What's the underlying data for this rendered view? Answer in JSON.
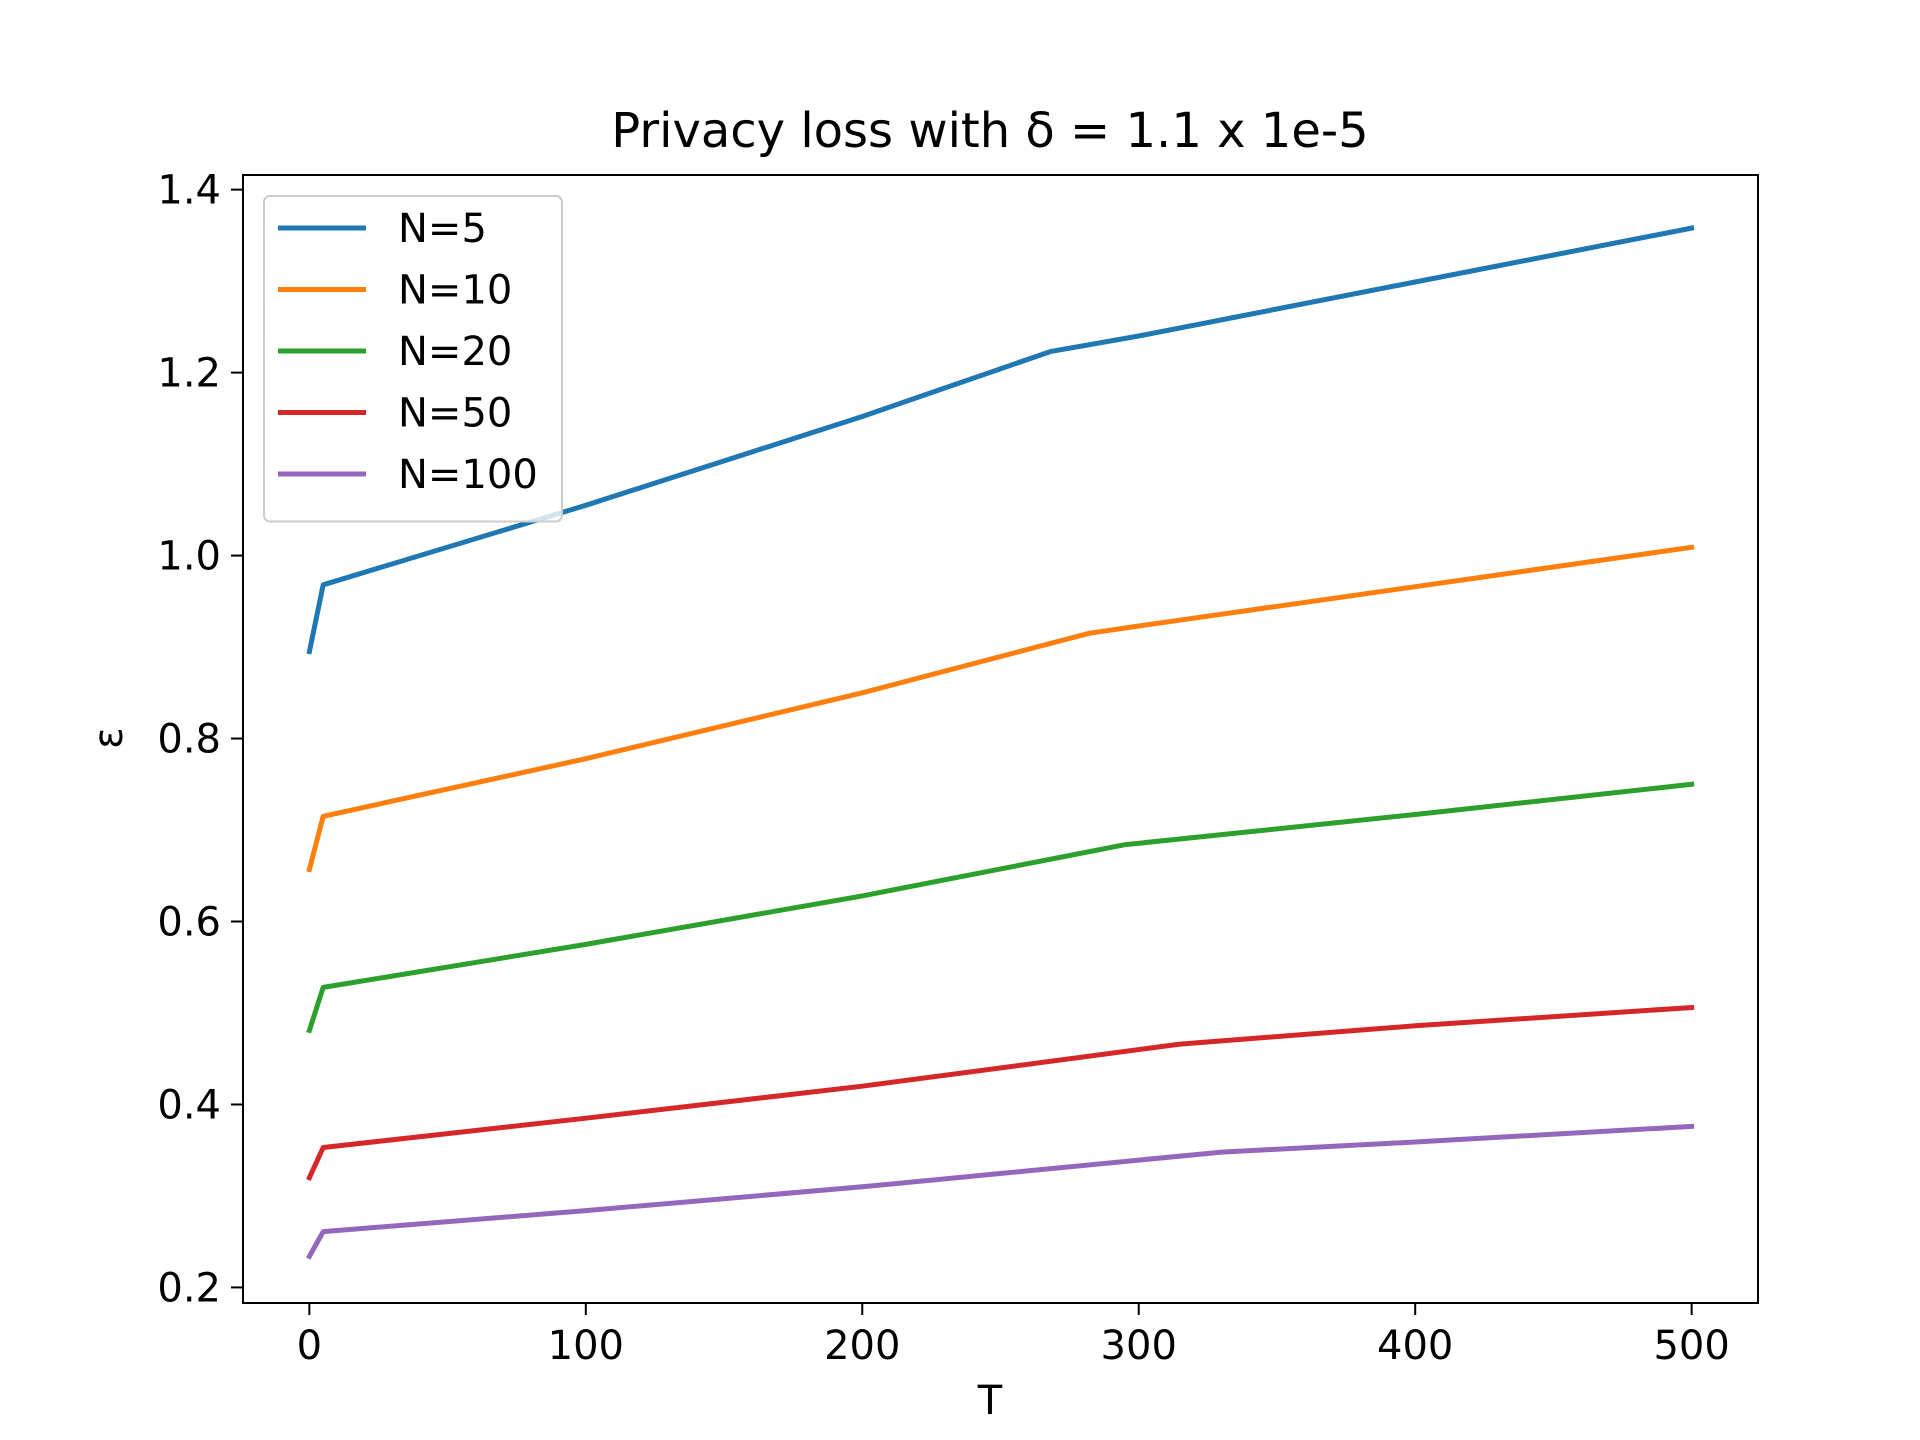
{
  "chart_data": {
    "type": "line",
    "title": "Privacy loss with δ = 1.1 x 1e-5",
    "xlabel": "T",
    "ylabel": "ε",
    "xlim": [
      -24,
      524
    ],
    "ylim": [
      0.183,
      1.416
    ],
    "xticks": [
      0,
      100,
      200,
      300,
      400,
      500
    ],
    "yticks": [
      0.2,
      0.4,
      0.6,
      0.8,
      1.0,
      1.2,
      1.4
    ],
    "ytick_labels": [
      "0.2",
      "0.4",
      "0.6",
      "0.8",
      "1.0",
      "1.2",
      "1.4"
    ],
    "grid": false,
    "legend": "upper-left",
    "series": [
      {
        "name": "N=5",
        "color": "#1f77b4",
        "points": [
          [
            0,
            0.895
          ],
          [
            5,
            0.968
          ],
          [
            100,
            1.055
          ],
          [
            200,
            1.152
          ],
          [
            268,
            1.223
          ],
          [
            300,
            1.24
          ],
          [
            400,
            1.299
          ],
          [
            500,
            1.358
          ]
        ]
      },
      {
        "name": "N=10",
        "color": "#ff7f0e",
        "points": [
          [
            0,
            0.657
          ],
          [
            5,
            0.715
          ],
          [
            100,
            0.778
          ],
          [
            200,
            0.85
          ],
          [
            282,
            0.915
          ],
          [
            300,
            0.923
          ],
          [
            400,
            0.966
          ],
          [
            500,
            1.009
          ]
        ]
      },
      {
        "name": "N=20",
        "color": "#2ca02c",
        "points": [
          [
            0,
            0.481
          ],
          [
            5,
            0.528
          ],
          [
            100,
            0.575
          ],
          [
            200,
            0.628
          ],
          [
            295,
            0.684
          ],
          [
            400,
            0.717
          ],
          [
            500,
            0.75
          ]
        ]
      },
      {
        "name": "N=50",
        "color": "#d62728",
        "points": [
          [
            0,
            0.32
          ],
          [
            5,
            0.353
          ],
          [
            100,
            0.385
          ],
          [
            200,
            0.42
          ],
          [
            315,
            0.466
          ],
          [
            400,
            0.486
          ],
          [
            500,
            0.506
          ]
        ]
      },
      {
        "name": "N=100",
        "color": "#9467bd",
        "points": [
          [
            0,
            0.234
          ],
          [
            5,
            0.261
          ],
          [
            100,
            0.284
          ],
          [
            200,
            0.31
          ],
          [
            330,
            0.348
          ],
          [
            400,
            0.359
          ],
          [
            500,
            0.376
          ]
        ]
      }
    ]
  }
}
